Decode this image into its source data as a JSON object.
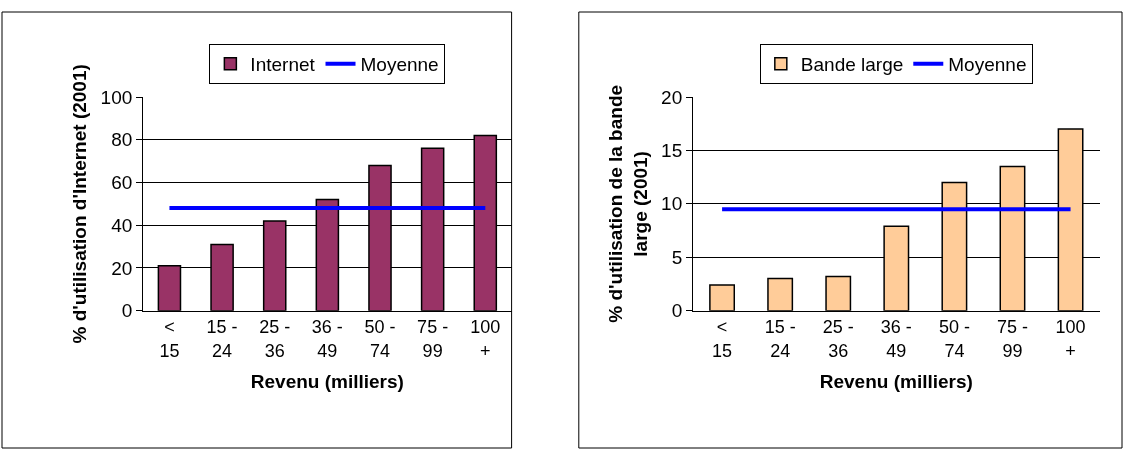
{
  "chart_data": [
    {
      "type": "bar",
      "categories": [
        "< 15",
        "15 - 24",
        "25 - 36",
        "36 - 49",
        "50 - 74",
        "75 - 99",
        "100 +"
      ],
      "xlabel": "Revenu (milliers)",
      "ylabel": "% d'utilisation d'Internet (2001)",
      "ylim": [
        0,
        100
      ],
      "yticks": [
        0,
        20,
        40,
        60,
        80,
        100
      ],
      "grid": "y",
      "legend": "top",
      "series": [
        {
          "name": "Internet",
          "color": "#993366",
          "values": [
            21,
            31,
            42,
            52,
            68,
            76,
            82
          ]
        },
        {
          "name": "Moyenne",
          "type": "line",
          "color": "#0000ff",
          "values": [
            48,
            48,
            48,
            48,
            48,
            48,
            48
          ]
        }
      ]
    },
    {
      "type": "bar",
      "categories": [
        "< 15",
        "15 - 24",
        "25 - 36",
        "36 - 49",
        "50 - 74",
        "75 - 99",
        "100 +"
      ],
      "xlabel": "Revenu (milliers)",
      "ylabel": "% d'utilisation de la bande large (2001)",
      "ylim": [
        0,
        20
      ],
      "yticks": [
        0,
        5,
        10,
        15,
        20
      ],
      "grid": "y",
      "legend": "top",
      "series": [
        {
          "name": "Bande large",
          "color": "#ffcc99",
          "values": [
            2.4,
            3.0,
            3.2,
            7.9,
            12,
            13.5,
            17
          ]
        },
        {
          "name": "Moyenne",
          "type": "line",
          "color": "#0000ff",
          "values": [
            9.5,
            9.5,
            9.5,
            9.5,
            9.5,
            9.5,
            9.5
          ]
        }
      ]
    }
  ]
}
